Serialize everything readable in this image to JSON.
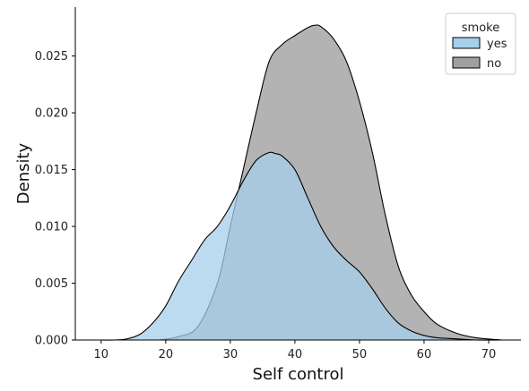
{
  "chart_data": {
    "type": "area",
    "title": "",
    "xlabel": "Self control",
    "ylabel": "Density",
    "xlim": [
      6,
      75
    ],
    "ylim": [
      0,
      0.0293
    ],
    "xticks": [
      10,
      20,
      30,
      40,
      50,
      60,
      70
    ],
    "yticks": [
      0.0,
      0.005,
      0.01,
      0.015,
      0.02,
      0.025
    ],
    "ytick_labels": [
      "0.000",
      "0.005",
      "0.010",
      "0.015",
      "0.020",
      "0.025"
    ],
    "grid": false,
    "legend": {
      "title": "smoke",
      "position": "top-right"
    },
    "series": [
      {
        "name": "no",
        "color": "#a0a0a0",
        "x": [
          19,
          22,
          25,
          28,
          30,
          32,
          34,
          36,
          38,
          40,
          42,
          43,
          44,
          46,
          48,
          50,
          52,
          54,
          56,
          58,
          60,
          62,
          65,
          68,
          72
        ],
        "y": [
          0.0,
          0.0003,
          0.0012,
          0.005,
          0.01,
          0.015,
          0.02,
          0.0245,
          0.026,
          0.0268,
          0.0275,
          0.0277,
          0.0276,
          0.0265,
          0.0245,
          0.021,
          0.0165,
          0.011,
          0.0065,
          0.004,
          0.0025,
          0.0014,
          0.0006,
          0.0002,
          0.0
        ]
      },
      {
        "name": "yes",
        "color": "#a6cfec",
        "x": [
          10,
          12,
          14,
          16,
          18,
          20,
          22,
          24,
          26,
          28,
          30,
          32,
          34,
          36,
          37,
          38,
          40,
          42,
          44,
          46,
          48,
          50,
          52,
          54,
          56,
          58,
          60,
          62,
          65,
          68,
          72
        ],
        "y": [
          0.0,
          0.0,
          0.0001,
          0.0005,
          0.0015,
          0.003,
          0.0052,
          0.007,
          0.0088,
          0.01,
          0.0118,
          0.014,
          0.0158,
          0.0165,
          0.0164,
          0.0162,
          0.015,
          0.0125,
          0.01,
          0.0082,
          0.007,
          0.006,
          0.0045,
          0.0028,
          0.0015,
          0.0008,
          0.0004,
          0.0002,
          0.0001,
          0.0,
          0.0
        ]
      }
    ]
  }
}
